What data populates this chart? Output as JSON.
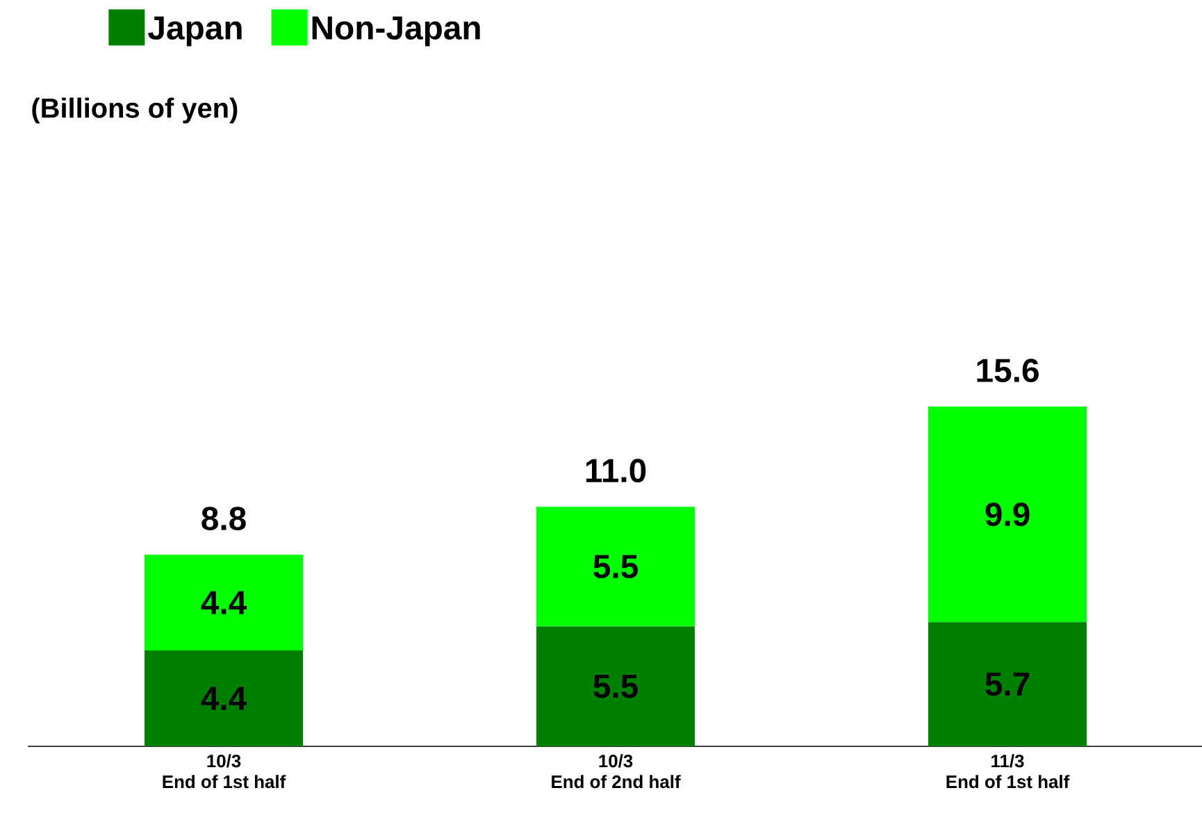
{
  "chart_data": {
    "type": "bar",
    "stacked": true,
    "annotations": [
      "(Billions of yen)"
    ],
    "categories": [
      "10/3\nEnd of 1st half",
      "10/3\nEnd of 2nd half",
      "11/3\nEnd of 1st half"
    ],
    "series": [
      {
        "name": "Japan",
        "color": "#008000",
        "values": [
          4.4,
          5.5,
          5.7
        ]
      },
      {
        "name": "Non-Japan",
        "color": "#00ff00",
        "values": [
          4.4,
          5.5,
          9.9
        ]
      }
    ],
    "totals": [
      "8.8",
      "11.0",
      "15.6"
    ],
    "data_labels": true,
    "legend": "top left"
  }
}
